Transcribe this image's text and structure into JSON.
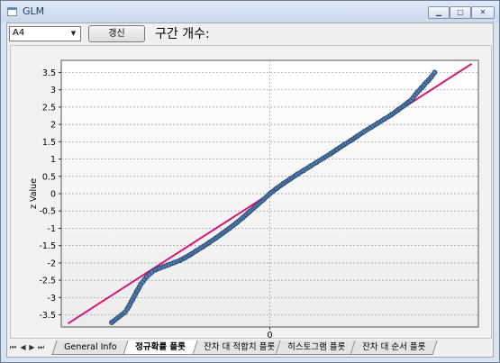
{
  "window": {
    "title": "GLM"
  },
  "toolbar": {
    "variable_select": "A4",
    "refresh_label": "갱신",
    "interval_label": "구간 개수:"
  },
  "tabs": [
    {
      "label": "General Info",
      "active": false
    },
    {
      "label": "정규확률 플롯",
      "active": true
    },
    {
      "label": "잔차 대 적합치 플롯",
      "active": false
    },
    {
      "label": "히스토그램 플롯",
      "active": false
    },
    {
      "label": "잔차 대 순서 플롯",
      "active": false
    }
  ],
  "tab_nav": [
    "first-icon",
    "prev-icon",
    "next-icon",
    "last-icon"
  ],
  "chart_data": {
    "type": "scatter",
    "title": "",
    "xlabel": "",
    "ylabel": "z Value",
    "x_tick_labels": [
      "0"
    ],
    "y_ticks": [
      "3.5",
      "3",
      "2.5",
      "2",
      "1.5",
      "1",
      "0.5",
      "0",
      "-0.5",
      "-1",
      "-1.5",
      "-2",
      "-2.5",
      "-3",
      "-3.5"
    ],
    "xlim": [
      -3.1,
      3.1
    ],
    "ylim": [
      -3.85,
      3.85
    ],
    "grid": true,
    "reference_line": {
      "color": "#d6196e",
      "from": [
        -3.0,
        -3.75
      ],
      "to": [
        3.0,
        3.75
      ]
    },
    "point_color": "#4f7fb4",
    "points": [
      [
        -2.35,
        -3.72
      ],
      [
        -2.15,
        -3.42
      ],
      [
        -2.12,
        -3.33
      ],
      [
        -2.1,
        -3.27
      ],
      [
        -2.08,
        -3.2
      ],
      [
        -2.06,
        -3.12
      ],
      [
        -2.04,
        -3.06
      ],
      [
        -2.02,
        -2.98
      ],
      [
        -2.0,
        -2.91
      ],
      [
        -1.98,
        -2.83
      ],
      [
        -1.96,
        -2.77
      ],
      [
        -1.94,
        -2.7
      ],
      [
        -1.92,
        -2.62
      ],
      [
        -1.89,
        -2.55
      ],
      [
        -1.86,
        -2.47
      ],
      [
        -1.83,
        -2.4
      ],
      [
        -1.79,
        -2.33
      ],
      [
        -1.75,
        -2.26
      ],
      [
        -1.7,
        -2.2
      ],
      [
        -1.64,
        -2.15
      ],
      [
        -1.57,
        -2.1
      ],
      [
        -1.5,
        -2.05
      ],
      [
        -1.42,
        -1.99
      ],
      [
        -1.34,
        -1.93
      ],
      [
        -1.26,
        -1.85
      ],
      [
        -1.18,
        -1.76
      ],
      [
        -1.1,
        -1.66
      ],
      [
        -1.0,
        -1.54
      ],
      [
        -0.9,
        -1.41
      ],
      [
        -0.8,
        -1.28
      ],
      [
        -0.7,
        -1.14
      ],
      [
        -0.6,
        -1.0
      ],
      [
        -0.5,
        -0.85
      ],
      [
        -0.4,
        -0.69
      ],
      [
        -0.3,
        -0.52
      ],
      [
        -0.2,
        -0.35
      ],
      [
        -0.1,
        -0.18
      ],
      [
        0.0,
        0.0
      ],
      [
        0.1,
        0.15
      ],
      [
        0.2,
        0.29
      ],
      [
        0.3,
        0.42
      ],
      [
        0.4,
        0.55
      ],
      [
        0.5,
        0.67
      ],
      [
        0.6,
        0.79
      ],
      [
        0.7,
        0.91
      ],
      [
        0.8,
        1.03
      ],
      [
        0.9,
        1.15
      ],
      [
        1.0,
        1.28
      ],
      [
        1.1,
        1.41
      ],
      [
        1.2,
        1.53
      ],
      [
        1.3,
        1.66
      ],
      [
        1.4,
        1.79
      ],
      [
        1.5,
        1.91
      ],
      [
        1.6,
        2.03
      ],
      [
        1.7,
        2.15
      ],
      [
        1.8,
        2.27
      ],
      [
        1.9,
        2.41
      ],
      [
        2.0,
        2.55
      ],
      [
        2.05,
        2.63
      ],
      [
        2.1,
        2.7
      ],
      [
        2.13,
        2.77
      ],
      [
        2.16,
        2.85
      ],
      [
        2.19,
        2.92
      ],
      [
        2.22,
        2.98
      ],
      [
        2.25,
        3.05
      ],
      [
        2.28,
        3.1
      ],
      [
        2.3,
        3.16
      ],
      [
        2.33,
        3.22
      ],
      [
        2.36,
        3.28
      ],
      [
        2.4,
        3.37
      ],
      [
        2.45,
        3.5
      ]
    ]
  }
}
